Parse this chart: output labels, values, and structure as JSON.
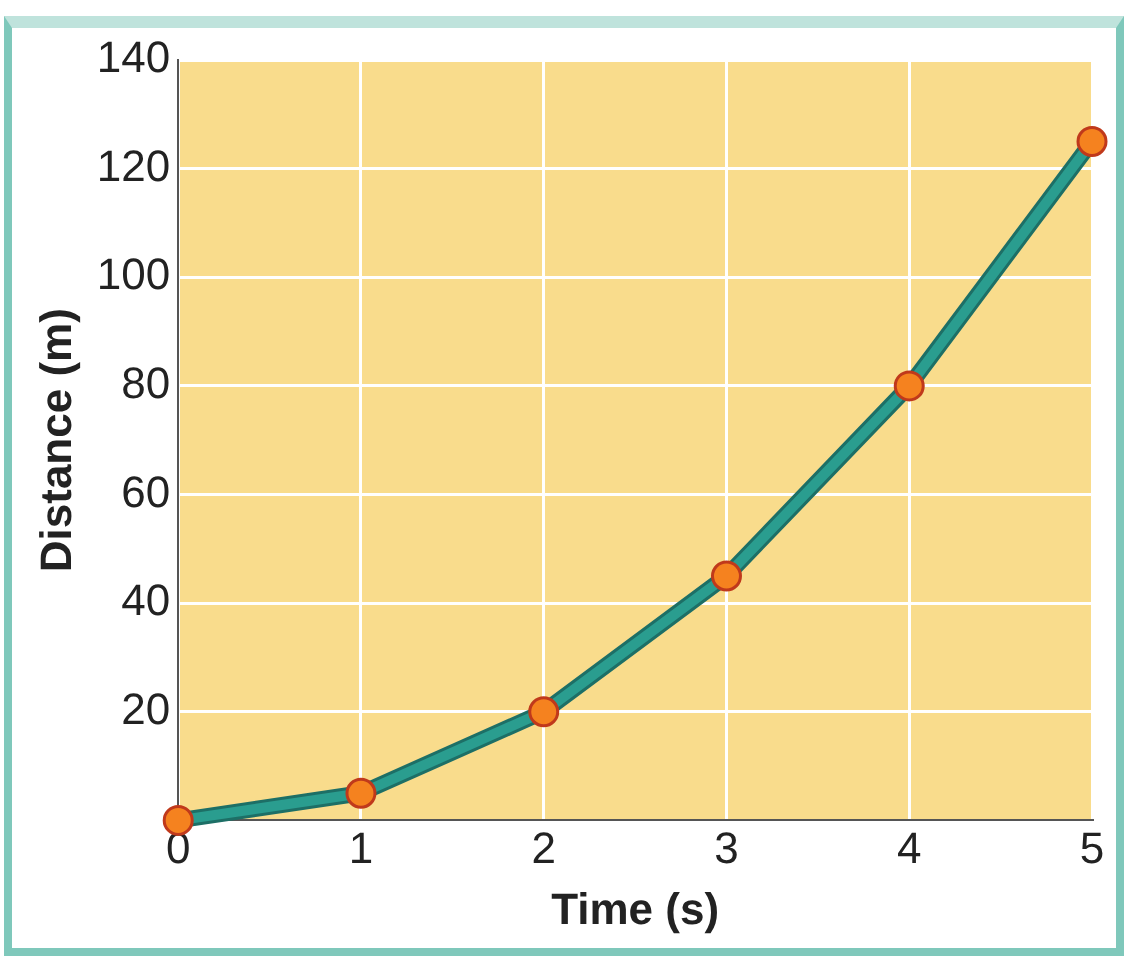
{
  "chart_data": {
    "type": "line",
    "xlabel": "Time (s)",
    "ylabel": "Distance (m)",
    "x": [
      0,
      1,
      2,
      3,
      4,
      5
    ],
    "series": [
      {
        "color": "#2a9d8f",
        "values": [
          0,
          5,
          20,
          45,
          80,
          125
        ]
      }
    ],
    "xlim": [
      0,
      5
    ],
    "xticks": [
      0,
      1,
      2,
      3,
      4,
      5
    ],
    "ylim": [
      0,
      140
    ],
    "yticks": [
      20,
      40,
      60,
      80,
      100,
      120,
      140
    ],
    "grid": true,
    "legend": false,
    "marker": "circle",
    "line_style": "solid"
  }
}
